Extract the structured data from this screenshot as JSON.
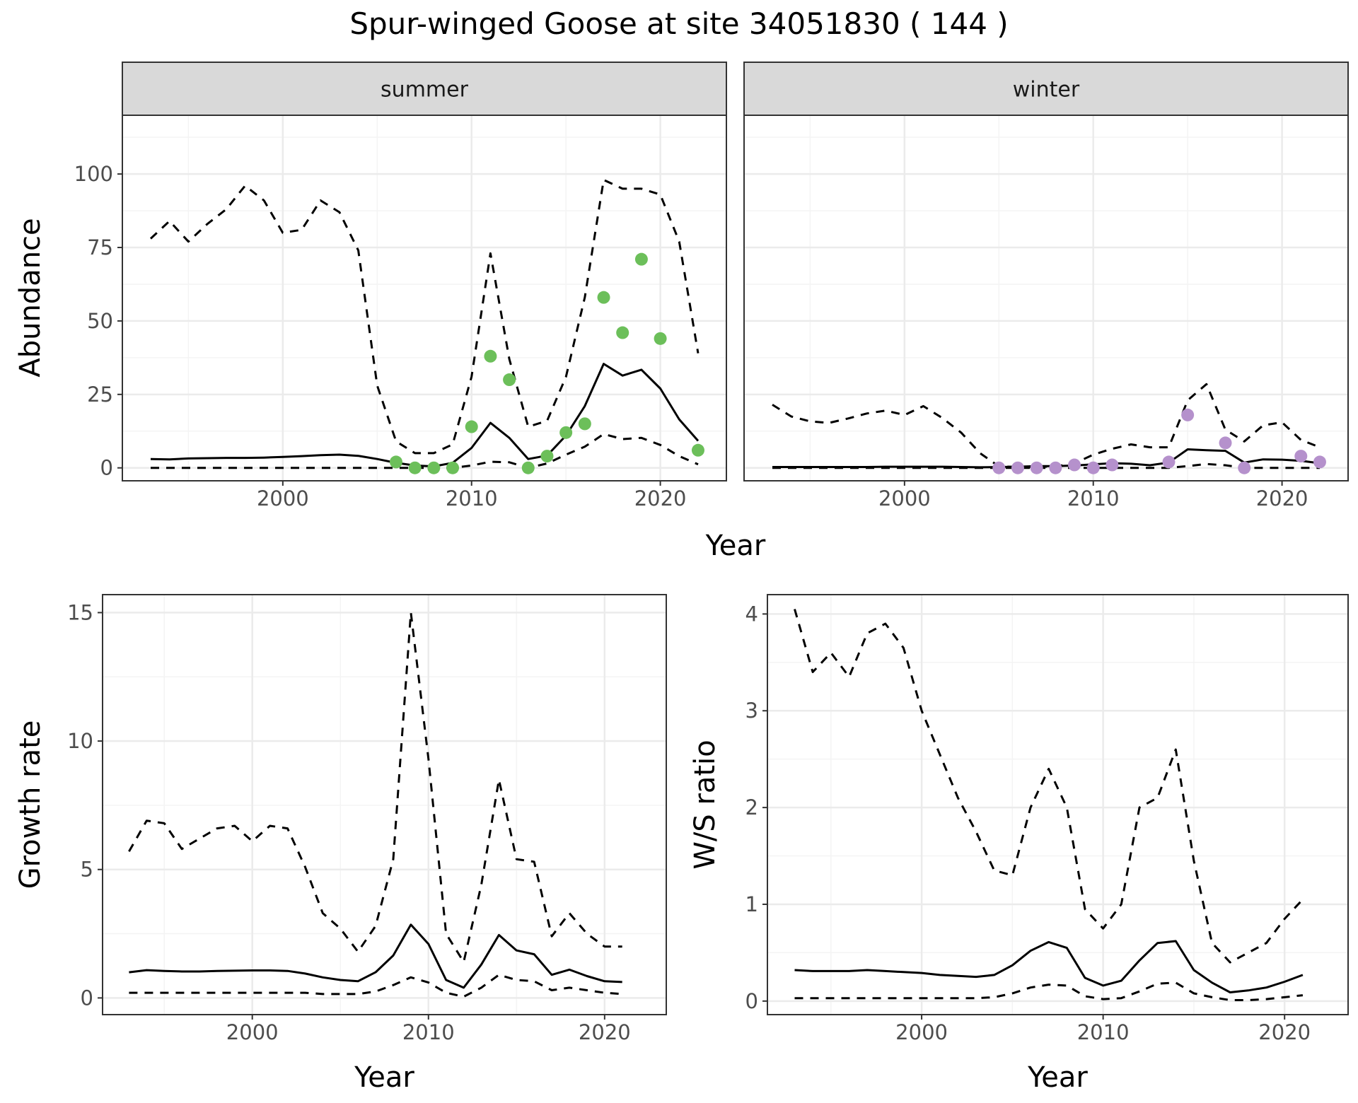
{
  "title": "Spur-winged Goose at site 34051830 ( 144 )",
  "colors": {
    "summer_points": "#6cbf5a",
    "winter_points": "#b591cc",
    "line": "#000000",
    "strip_fill": "#d9d9d9",
    "grid_major": "#ebebeb",
    "grid_minor": "#f4f4f4"
  },
  "chart_data": [
    {
      "id": "abundance",
      "type": "line",
      "ylabel": "Abundance",
      "xlabel": "Year",
      "xlim": [
        1991.5,
        2023.5
      ],
      "xticks": [
        2000,
        2010,
        2020
      ],
      "ylim": [
        -4.4,
        120
      ],
      "yticks": [
        0,
        25,
        50,
        75,
        100
      ],
      "facets": [
        {
          "strip": "summer",
          "point_color": "#6cbf5a",
          "years": [
            1993,
            1994,
            1995,
            1996,
            1997,
            1998,
            1999,
            2000,
            2001,
            2002,
            2003,
            2004,
            2005,
            2006,
            2007,
            2008,
            2009,
            2010,
            2011,
            2012,
            2013,
            2014,
            2015,
            2016,
            2017,
            2018,
            2019,
            2020,
            2021,
            2022
          ],
          "estimate": [
            3.0,
            2.9,
            3.2,
            3.3,
            3.4,
            3.4,
            3.5,
            3.7,
            4.0,
            4.3,
            4.5,
            4.1,
            3.0,
            1.7,
            0.8,
            0.5,
            1.7,
            6.8,
            15.3,
            10.2,
            3.0,
            4.2,
            11.0,
            21.0,
            35.4,
            31.4,
            33.4,
            27.0,
            16.5,
            9.2
          ],
          "upper": [
            78,
            84,
            77,
            83,
            88,
            96,
            91,
            80,
            81,
            91,
            87,
            74,
            28,
            9,
            5,
            5,
            8,
            31,
            73,
            37,
            14,
            16,
            31,
            58,
            98,
            95,
            95,
            93,
            77,
            39
          ],
          "lower": [
            0,
            0,
            0,
            0,
            0,
            0,
            0,
            0,
            0,
            0,
            0,
            0,
            0,
            0,
            0,
            0,
            0,
            0.8,
            2.1,
            1.9,
            0,
            1.5,
            4.5,
            7.2,
            11.5,
            9.8,
            10.2,
            7.8,
            4.0,
            1.2
          ],
          "points": [
            {
              "x": 2006,
              "y": 2
            },
            {
              "x": 2007,
              "y": 0
            },
            {
              "x": 2008,
              "y": 0
            },
            {
              "x": 2009,
              "y": 0
            },
            {
              "x": 2010,
              "y": 14
            },
            {
              "x": 2011,
              "y": 38
            },
            {
              "x": 2012,
              "y": 30
            },
            {
              "x": 2013,
              "y": 0
            },
            {
              "x": 2014,
              "y": 4
            },
            {
              "x": 2015,
              "y": 12
            },
            {
              "x": 2016,
              "y": 15
            },
            {
              "x": 2017,
              "y": 58
            },
            {
              "x": 2018,
              "y": 46
            },
            {
              "x": 2019,
              "y": 71
            },
            {
              "x": 2020,
              "y": 44
            },
            {
              "x": 2022,
              "y": 6
            }
          ]
        },
        {
          "strip": "winter",
          "point_color": "#b591cc",
          "years": [
            1993,
            1994,
            1995,
            1996,
            1997,
            1998,
            1999,
            2000,
            2001,
            2002,
            2003,
            2004,
            2005,
            2006,
            2007,
            2008,
            2009,
            2010,
            2011,
            2012,
            2013,
            2014,
            2015,
            2016,
            2017,
            2018,
            2019,
            2020,
            2021,
            2022
          ],
          "estimate": [
            0.3,
            0.3,
            0.3,
            0.3,
            0.3,
            0.3,
            0.4,
            0.4,
            0.4,
            0.4,
            0.3,
            0.2,
            0.3,
            0.4,
            0.6,
            0.6,
            0.8,
            1.2,
            1.6,
            1.4,
            0.9,
            1.8,
            6.3,
            6.0,
            5.8,
            1.8,
            2.9,
            2.8,
            2.4,
            1.6
          ],
          "upper": [
            21.5,
            17.5,
            15.8,
            15.3,
            16.8,
            18.5,
            19.5,
            18,
            21,
            17,
            12,
            5,
            0.5,
            0.3,
            0.3,
            0.5,
            1.5,
            4.5,
            6.5,
            8,
            7,
            7,
            23,
            28.5,
            13,
            9,
            14.5,
            15.5,
            9.5,
            7
          ],
          "lower": [
            0,
            0,
            0,
            0,
            0,
            0,
            0,
            0,
            0,
            0,
            0,
            0,
            0,
            0,
            0,
            0,
            0,
            0,
            0,
            0,
            0,
            0,
            0.6,
            1.3,
            0.9,
            0,
            0,
            0,
            0,
            0
          ],
          "points": [
            {
              "x": 2005,
              "y": 0
            },
            {
              "x": 2006,
              "y": 0
            },
            {
              "x": 2007,
              "y": 0
            },
            {
              "x": 2008,
              "y": 0
            },
            {
              "x": 2009,
              "y": 1
            },
            {
              "x": 2010,
              "y": 0
            },
            {
              "x": 2011,
              "y": 1
            },
            {
              "x": 2014,
              "y": 2
            },
            {
              "x": 2015,
              "y": 18
            },
            {
              "x": 2017,
              "y": 8.5
            },
            {
              "x": 2018,
              "y": 0
            },
            {
              "x": 2021,
              "y": 4
            },
            {
              "x": 2022,
              "y": 2
            }
          ]
        }
      ]
    },
    {
      "id": "growth",
      "type": "line",
      "ylabel": "Growth rate",
      "xlabel": "Year",
      "xlim": [
        1991.5,
        2023.5
      ],
      "xticks": [
        2000,
        2010,
        2020
      ],
      "ylim": [
        -0.65,
        15.7
      ],
      "yticks": [
        0,
        5,
        10,
        15
      ],
      "years": [
        1993,
        1994,
        1995,
        1996,
        1997,
        1998,
        1999,
        2000,
        2001,
        2002,
        2003,
        2004,
        2005,
        2006,
        2007,
        2008,
        2009,
        2010,
        2011,
        2012,
        2013,
        2014,
        2015,
        2016,
        2017,
        2018,
        2019,
        2020,
        2021
      ],
      "estimate": [
        1.0,
        1.08,
        1.05,
        1.03,
        1.03,
        1.05,
        1.06,
        1.07,
        1.07,
        1.05,
        0.95,
        0.8,
        0.7,
        0.65,
        1.0,
        1.65,
        2.85,
        2.1,
        0.7,
        0.4,
        1.3,
        2.45,
        1.85,
        1.7,
        0.9,
        1.1,
        0.85,
        0.65,
        0.62
      ],
      "upper": [
        5.7,
        6.9,
        6.8,
        5.8,
        6.2,
        6.6,
        6.7,
        6.1,
        6.7,
        6.6,
        5.1,
        3.3,
        2.7,
        1.8,
        2.8,
        5.4,
        15.0,
        9.3,
        2.5,
        1.4,
        4.4,
        8.5,
        5.4,
        5.3,
        2.4,
        3.3,
        2.5,
        2.0,
        2.0
      ],
      "lower": [
        0.2,
        0.2,
        0.2,
        0.2,
        0.2,
        0.2,
        0.2,
        0.2,
        0.2,
        0.2,
        0.2,
        0.15,
        0.15,
        0.15,
        0.25,
        0.5,
        0.8,
        0.6,
        0.2,
        0.05,
        0.4,
        0.9,
        0.7,
        0.65,
        0.3,
        0.4,
        0.3,
        0.2,
        0.15
      ]
    },
    {
      "id": "ratio",
      "type": "line",
      "ylabel": "W/S ratio",
      "xlabel": "Year",
      "xlim": [
        1991.5,
        2023.5
      ],
      "xticks": [
        2000,
        2010,
        2020
      ],
      "ylim": [
        -0.14,
        4.2
      ],
      "yticks": [
        0,
        1,
        2,
        3,
        4
      ],
      "years": [
        1993,
        1994,
        1995,
        1996,
        1997,
        1998,
        1999,
        2000,
        2001,
        2002,
        2003,
        2004,
        2005,
        2006,
        2007,
        2008,
        2009,
        2010,
        2011,
        2012,
        2013,
        2014,
        2015,
        2016,
        2017,
        2018,
        2019,
        2020,
        2021
      ],
      "estimate": [
        0.32,
        0.31,
        0.31,
        0.31,
        0.32,
        0.31,
        0.3,
        0.29,
        0.27,
        0.26,
        0.25,
        0.27,
        0.37,
        0.52,
        0.61,
        0.55,
        0.24,
        0.16,
        0.21,
        0.42,
        0.6,
        0.62,
        0.32,
        0.19,
        0.09,
        0.11,
        0.14,
        0.2,
        0.27
      ],
      "upper": [
        4.05,
        3.4,
        3.6,
        3.35,
        3.8,
        3.9,
        3.65,
        3.0,
        2.55,
        2.1,
        1.75,
        1.35,
        1.3,
        2.0,
        2.4,
        2.0,
        0.95,
        0.75,
        1.0,
        2.0,
        2.1,
        2.6,
        1.45,
        0.6,
        0.4,
        0.5,
        0.6,
        0.85,
        1.05
      ],
      "lower": [
        0.03,
        0.03,
        0.03,
        0.03,
        0.03,
        0.03,
        0.03,
        0.03,
        0.03,
        0.03,
        0.03,
        0.04,
        0.08,
        0.14,
        0.17,
        0.16,
        0.05,
        0.02,
        0.03,
        0.1,
        0.18,
        0.19,
        0.08,
        0.04,
        0.01,
        0.01,
        0.02,
        0.04,
        0.06
      ]
    }
  ]
}
